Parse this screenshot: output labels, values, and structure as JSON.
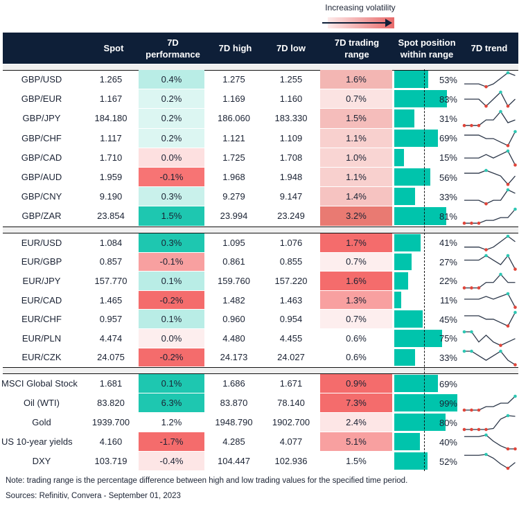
{
  "legend": "Increasing volatility",
  "headers": {
    "spot": "Spot",
    "perf1": "7D",
    "perf2": "performance",
    "high": "7D high",
    "low": "7D low",
    "range1": "7D trading",
    "range2": "range",
    "pos1": "Spot position",
    "pos2": "within range",
    "trend": "7D trend"
  },
  "groups": [
    [
      {
        "name": "GBP/USD",
        "spot": "1.265",
        "perf": "0.4%",
        "perf_color": "#b9ede6",
        "high": "1.275",
        "low": "1.255",
        "range": "1.6%",
        "range_color": "#f3b6b3",
        "position": 53,
        "trend": [
          3,
          3,
          3,
          2,
          3,
          5,
          7,
          6
        ]
      },
      {
        "name": "GBP/EUR",
        "spot": "1.167",
        "perf": "0.2%",
        "perf_color": "#dcf6f2",
        "high": "1.169",
        "low": "1.160",
        "range": "0.7%",
        "range_color": "#fbe3e2",
        "position": 83,
        "trend": [
          5,
          5,
          5,
          4,
          5,
          6,
          4,
          5
        ]
      },
      {
        "name": "GBP/JPY",
        "spot": "184.180",
        "perf": "0.2%",
        "perf_color": "#dcf6f2",
        "high": "186.060",
        "low": "183.330",
        "range": "1.5%",
        "range_color": "#f5bdbb",
        "position": 31,
        "trend": [
          2,
          2,
          2,
          4,
          4,
          7,
          3,
          4
        ]
      },
      {
        "name": "GBP/CHF",
        "spot": "1.117",
        "perf": "0.2%",
        "perf_color": "#dcf6f2",
        "high": "1.121",
        "low": "1.109",
        "range": "1.1%",
        "range_color": "#f8d0ce",
        "position": 69,
        "trend": [
          5,
          5,
          5,
          4,
          4,
          3,
          2,
          6
        ]
      },
      {
        "name": "GBP/CAD",
        "spot": "1.710",
        "perf": "0.0%",
        "perf_color": "#fde0e0",
        "high": "1.725",
        "low": "1.708",
        "range": "1.0%",
        "range_color": "#f9d5d3",
        "position": 15,
        "trend": [
          5,
          5,
          5,
          6,
          5,
          6,
          7,
          3
        ]
      },
      {
        "name": "GBP/AUD",
        "spot": "1.959",
        "perf": "-0.1%",
        "perf_color": "#f77474",
        "high": "1.968",
        "low": "1.948",
        "range": "1.1%",
        "range_color": "#f8d0ce",
        "position": 56,
        "trend": [
          6,
          6,
          6,
          7,
          6,
          5,
          2,
          5
        ]
      },
      {
        "name": "GBP/CNY",
        "spot": "9.190",
        "perf": "0.3%",
        "perf_color": "#c9f1eb",
        "high": "9.279",
        "low": "9.147",
        "range": "1.4%",
        "range_color": "#f6c3c1",
        "position": 33,
        "trend": [
          3,
          3,
          3,
          2,
          3,
          3,
          6,
          5
        ]
      },
      {
        "name": "GBP/ZAR",
        "spot": "23.854",
        "perf": "1.5%",
        "perf_color": "#1ec7b0",
        "high": "23.994",
        "low": "23.249",
        "range": "3.2%",
        "range_color": "#e97a72",
        "position": 81,
        "trend": [
          2,
          2,
          2,
          3,
          3,
          4,
          4,
          7
        ]
      }
    ],
    [
      {
        "name": "EUR/USD",
        "spot": "1.084",
        "perf": "0.3%",
        "perf_color": "#1ec7b0",
        "high": "1.095",
        "low": "1.076",
        "range": "1.7%",
        "range_color": "#f46c6c",
        "position": 41,
        "trend": [
          3,
          3,
          3,
          2,
          3,
          5,
          7,
          5
        ]
      },
      {
        "name": "EUR/GBP",
        "spot": "0.857",
        "perf": "-0.1%",
        "perf_color": "#f8a0a0",
        "high": "0.861",
        "low": "0.855",
        "range": "0.7%",
        "range_color": "#fdeeee",
        "position": 27,
        "trend": [
          5,
          5,
          5,
          6,
          5,
          4,
          6,
          3
        ]
      },
      {
        "name": "EUR/JPY",
        "spot": "157.770",
        "perf": "0.1%",
        "perf_color": "#b9ede6",
        "high": "159.760",
        "low": "157.220",
        "range": "1.6%",
        "range_color": "#f46c6c",
        "position": 22,
        "trend": [
          2,
          2,
          2,
          4,
          4,
          7,
          4,
          4
        ]
      },
      {
        "name": "EUR/CAD",
        "spot": "1.465",
        "perf": "-0.2%",
        "perf_color": "#f46c6c",
        "high": "1.482",
        "low": "1.463",
        "range": "1.3%",
        "range_color": "#f8a0a0",
        "position": 11,
        "trend": [
          5,
          5,
          5,
          6,
          5,
          6,
          7,
          2
        ]
      },
      {
        "name": "EUR/CHF",
        "spot": "0.957",
        "perf": "0.1%",
        "perf_color": "#b9ede6",
        "high": "0.960",
        "low": "0.954",
        "range": "0.7%",
        "range_color": "#fdeeee",
        "position": 45,
        "trend": [
          5,
          5,
          5,
          4,
          4,
          3,
          2,
          6
        ]
      },
      {
        "name": "EUR/PLN",
        "spot": "4.474",
        "perf": "0.0%",
        "perf_color": "#fdeeee",
        "high": "4.480",
        "low": "4.455",
        "range": "0.6%",
        "range_color": "#ffffff",
        "position": 75,
        "trend": [
          7,
          7,
          4,
          6,
          4,
          3,
          4,
          5
        ]
      },
      {
        "name": "EUR/CZK",
        "spot": "24.075",
        "perf": "-0.2%",
        "perf_color": "#f46c6c",
        "high": "24.173",
        "low": "24.027",
        "range": "0.6%",
        "range_color": "#ffffff",
        "position": 33,
        "trend": [
          6,
          6,
          5,
          4,
          5,
          6,
          4,
          3
        ]
      }
    ],
    [
      {
        "name": "MSCI Global Stock",
        "spot": "1.681",
        "perf": "0.1%",
        "perf_color": "#1ec7b0",
        "high": "1.686",
        "low": "1.671",
        "range": "0.9%",
        "range_color": "#f46c6c",
        "position": 69,
        "trend": []
      },
      {
        "name": "Oil (WTI)",
        "spot": "83.820",
        "perf": "6.3%",
        "perf_color": "#1ec7b0",
        "high": "83.870",
        "low": "78.140",
        "range": "7.3%",
        "range_color": "#f46c6c",
        "position": 99,
        "trend": [
          1,
          1,
          1,
          2,
          2,
          3,
          3,
          5
        ]
      },
      {
        "name": "Gold",
        "spot": "1939.700",
        "perf": "1.2%",
        "perf_color": "#ffffff",
        "high": "1948.790",
        "low": "1902.700",
        "range": "2.4%",
        "range_color": "#fde6e6",
        "position": 80,
        "trend": [
          2,
          2,
          2,
          2,
          2.3,
          5,
          6,
          5.8
        ]
      },
      {
        "name": "US 10-year yields",
        "spot": "4.160",
        "perf": "-1.7%",
        "perf_color": "#f46c6c",
        "high": "4.285",
        "low": "4.077",
        "range": "5.1%",
        "range_color": "#f8a0a0",
        "position": 40,
        "trend": [
          6,
          6,
          6,
          6.5,
          4.5,
          3,
          2,
          2
        ]
      },
      {
        "name": "DXY",
        "spot": "103.719",
        "perf": "-0.4%",
        "perf_color": "#fde6e6",
        "high": "104.447",
        "low": "102.936",
        "range": "1.5%",
        "range_color": "#ffffff",
        "position": 52,
        "trend": [
          6,
          6,
          6,
          6.3,
          5,
          3,
          1.5,
          3.5
        ]
      }
    ]
  ],
  "note": "Note: trading range is the percentage difference between high and low trading values for the specified time period.",
  "sources": "Sources: Refinitiv, Convera - September 01, 2023",
  "colors": {
    "header": "#0e1f38",
    "bar": "#00c4ac",
    "min_dot": "#e0453a",
    "max_dot": "#2ec7b3"
  }
}
